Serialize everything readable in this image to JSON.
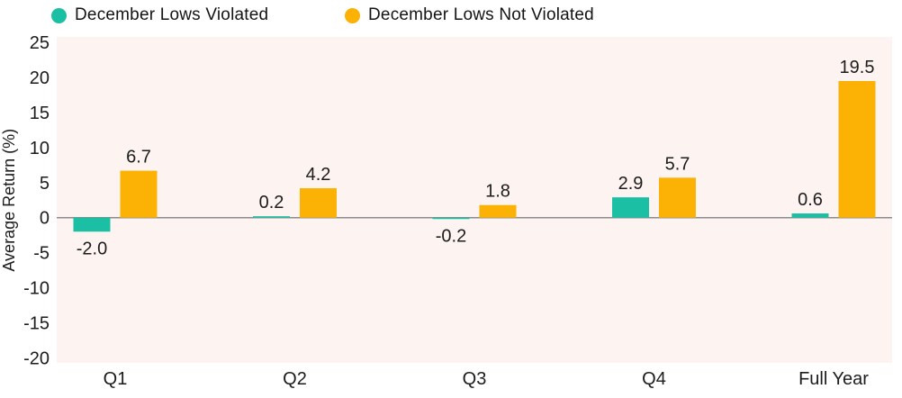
{
  "legend": {
    "items": [
      {
        "label": "December Lows Violated",
        "color": "#1abfa4"
      },
      {
        "label": "December Lows Not Violated",
        "color": "#fcb105"
      }
    ]
  },
  "chart_data": {
    "type": "bar",
    "categories": [
      "Q1",
      "Q2",
      "Q3",
      "Q4",
      "Full Year"
    ],
    "series": [
      {
        "name": "December Lows Violated",
        "color": "#1abfa4",
        "values": [
          -2.0,
          0.2,
          -0.2,
          2.9,
          0.6
        ]
      },
      {
        "name": "December Lows Not Violated",
        "color": "#fcb105",
        "values": [
          6.7,
          4.2,
          1.8,
          5.7,
          19.5
        ]
      }
    ],
    "title": "",
    "xlabel": "",
    "ylabel": "Average Return (%)",
    "ylim": [
      -20,
      25
    ],
    "yticks": [
      25,
      20,
      15,
      10,
      5,
      0,
      -5,
      -10,
      -15,
      -20
    ],
    "grid": false,
    "legend_position": "top",
    "plot_bg": "#fdf4f2",
    "axis_line_color": "#8c8c8c",
    "text_color": "#1c1c1c",
    "value_label_decimals": 1
  }
}
